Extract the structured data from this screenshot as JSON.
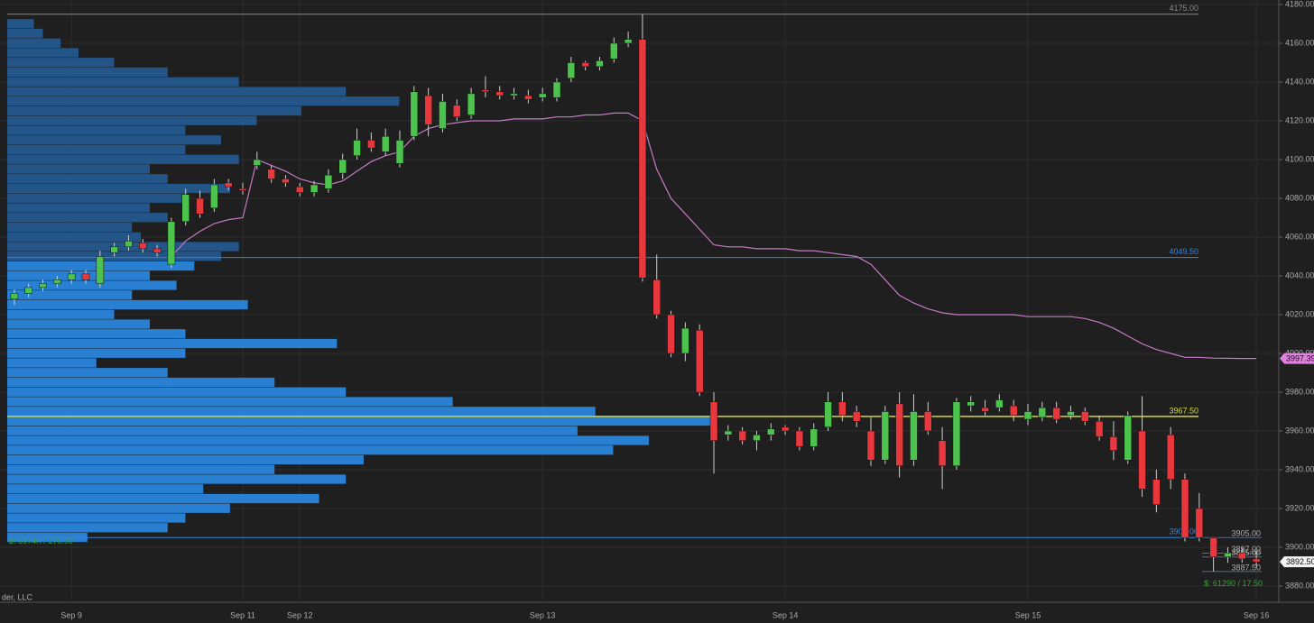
{
  "chart_data": {
    "type": "candlestick",
    "footer": "der, LLC",
    "categories": [
      null,
      null,
      null,
      null,
      "Sep 9",
      null,
      null,
      null,
      null,
      null,
      null,
      null,
      null,
      null,
      null,
      null,
      "Sep 11",
      null,
      null,
      null,
      "Sep 12",
      null,
      null,
      null,
      null,
      null,
      null,
      null,
      null,
      null,
      null,
      null,
      null,
      null,
      null,
      null,
      null,
      "Sep 13",
      null,
      null,
      null,
      null,
      null,
      null,
      null,
      null,
      null,
      null,
      null,
      null,
      null,
      null,
      null,
      null,
      "Sep 14",
      null,
      null,
      null,
      null,
      null,
      null,
      null,
      null,
      null,
      null,
      null,
      null,
      null,
      null,
      null,
      null,
      "Sep 15",
      null,
      null,
      null,
      null,
      null,
      null,
      null,
      null,
      null,
      null,
      null,
      null,
      null,
      null,
      null,
      "Sep 16"
    ],
    "open": [
      4028,
      4031,
      4034,
      4036,
      4038,
      4041,
      4036,
      4052,
      4055,
      4057,
      4054,
      4046,
      4068,
      4080,
      4075,
      4088,
      4085,
      4097,
      4095,
      4090,
      4086,
      4083,
      4085,
      4093,
      4102,
      4110,
      4104,
      4098,
      4112,
      4133,
      4116,
      4128,
      4123,
      4136,
      4135,
      4133,
      4133,
      4132,
      4132,
      4142,
      4150,
      4148,
      4152,
      4160,
      4162,
      4038,
      4020,
      4000,
      4012,
      3975,
      3958,
      3960,
      3955,
      3958,
      3962,
      3960,
      3952,
      3962,
      3975,
      3970,
      3960,
      3945,
      3974,
      3945,
      3970,
      3955,
      3942,
      3973,
      3972,
      3972,
      3973,
      3966,
      3967,
      3972,
      3968,
      3970,
      3965,
      3957,
      3945,
      3960,
      3935,
      3958,
      3935,
      3920,
      3905,
      3895,
      3897,
      3894
    ],
    "high": [
      4033,
      4036,
      4038,
      4040,
      4043,
      4043,
      4053,
      4057,
      4061,
      4059,
      4056,
      4070,
      4085,
      4084,
      4090,
      4090,
      4088,
      4104,
      4097,
      4092,
      4088,
      4089,
      4095,
      4103,
      4116,
      4114,
      4116,
      4115,
      4138,
      4137,
      4134,
      4131,
      4137,
      4143,
      4138,
      4137,
      4136,
      4137,
      4142,
      4153,
      4151,
      4153,
      4163,
      4166,
      4175,
      4051,
      4022,
      4016,
      4015,
      3980,
      3963,
      3962,
      3960,
      3964,
      3963,
      3962,
      3964,
      3980,
      3980,
      3973,
      3967,
      3973,
      3980,
      3979,
      3975,
      3962,
      3977,
      3978,
      3976,
      3979,
      3976,
      3974,
      3975,
      3975,
      3973,
      3972,
      3968,
      3965,
      3970,
      3978,
      3940,
      3962,
      3938,
      3928,
      3905,
      3900,
      3900,
      3898
    ],
    "low": [
      4025,
      4029,
      4032,
      4034,
      4036,
      4036,
      4034,
      4050,
      4053,
      4052,
      4050,
      4044,
      4066,
      4070,
      4073,
      4084,
      4082,
      4095,
      4088,
      4086,
      4081,
      4081,
      4083,
      4090,
      4100,
      4104,
      4102,
      4096,
      4110,
      4112,
      4114,
      4120,
      4121,
      4132,
      4131,
      4131,
      4129,
      4130,
      4130,
      4140,
      4146,
      4146,
      4150,
      4158,
      4037,
      4018,
      3998,
      3996,
      3978,
      3938,
      3955,
      3953,
      3950,
      3955,
      3958,
      3950,
      3950,
      3960,
      3965,
      3962,
      3942,
      3943,
      3936,
      3942,
      3958,
      3930,
      3940,
      3970,
      3968,
      3970,
      3965,
      3963,
      3965,
      3964,
      3966,
      3963,
      3955,
      3945,
      3943,
      3926,
      3918,
      3930,
      3903,
      3903,
      3887.5,
      3892,
      3892,
      3890
    ],
    "close": [
      4031,
      4034,
      4036,
      4038,
      4041,
      4038,
      4050,
      4055,
      4058,
      4054,
      4052,
      4068,
      4082,
      4072,
      4087,
      4086,
      4084,
      4100,
      4090,
      4088,
      4083,
      4087,
      4092,
      4100,
      4110,
      4106,
      4112,
      4110,
      4135,
      4118,
      4130,
      4122,
      4134,
      4135,
      4133,
      4134,
      4131,
      4134,
      4140,
      4150,
      4148,
      4151,
      4160,
      4162,
      4039,
      4020,
      4000,
      4013,
      3980,
      3955,
      3960,
      3955,
      3958,
      3961,
      3960,
      3952,
      3961,
      3975,
      3968,
      3965,
      3945,
      3970,
      3942,
      3970,
      3960,
      3942,
      3975,
      3975,
      3970,
      3976,
      3968,
      3970,
      3972,
      3966,
      3970,
      3965,
      3957,
      3950,
      3968,
      3930,
      3922,
      3935,
      3905,
      3905,
      3895,
      3897,
      3894,
      3892.5
    ],
    "up_color": "#4cc34c",
    "down_color": "#e8383d",
    "vwap": {
      "color": "#c77bc7",
      "values": [
        null,
        null,
        null,
        null,
        null,
        null,
        null,
        null,
        null,
        null,
        null,
        4050,
        4058,
        4063,
        4067,
        4069,
        4070,
        4100,
        4097,
        4094,
        4090,
        4088,
        4087,
        4089,
        4094,
        4099,
        4102,
        4104,
        4112,
        4116,
        4118,
        4119,
        4120,
        4120,
        4120,
        4121,
        4121,
        4121,
        4122,
        4122,
        4123,
        4123,
        4124,
        4124,
        4120,
        4095,
        4080,
        4072,
        4064,
        4056,
        4055,
        4055,
        4054,
        4054,
        4054,
        4053,
        4053,
        4052,
        4051,
        4050,
        4046,
        4038,
        4030,
        4026,
        4023,
        4021,
        4020,
        4020,
        4020,
        4020,
        4020,
        4019,
        4019,
        4019,
        4019,
        4018,
        4016,
        4013,
        4009,
        4005,
        4002,
        4000,
        3998,
        3998,
        3997.6,
        3997.5,
        3997.4,
        3997.39
      ]
    },
    "volume_profile": {
      "prices": [
        4170,
        4165,
        4160,
        4155,
        4150,
        4145,
        4140,
        4135,
        4130,
        4125,
        4120,
        4115,
        4110,
        4105,
        4100,
        4095,
        4090,
        4085,
        4080,
        4075,
        4070,
        4065,
        4060,
        4055,
        4050,
        4045,
        4040,
        4035,
        4030,
        4025,
        4020,
        4015,
        4010,
        4005,
        4000,
        3995,
        3990,
        3985,
        3980,
        3975,
        3970,
        3965,
        3960,
        3955,
        3950,
        3945,
        3940,
        3935,
        3930,
        3925,
        3920,
        3915,
        3910,
        3905
      ],
      "values": [
        30,
        40,
        60,
        80,
        120,
        180,
        260,
        380,
        440,
        330,
        280,
        200,
        240,
        200,
        260,
        160,
        180,
        250,
        200,
        160,
        180,
        140,
        150,
        260,
        240,
        210,
        160,
        190,
        140,
        270,
        120,
        160,
        200,
        370,
        200,
        100,
        180,
        300,
        380,
        500,
        660,
        790,
        640,
        720,
        680,
        400,
        300,
        380,
        220,
        350,
        250,
        200,
        180,
        90
      ],
      "value_area": [
        3905,
        4049.5
      ],
      "inside_color": "#2a86dc",
      "outside_color": "#24598f",
      "labels": [
        {
          "text": "$: 6974K / 270.00",
          "price": 3903
        },
        {
          "text": "$: 61290 / 17.50",
          "price": 3881
        }
      ]
    },
    "levels": [
      {
        "value": 4175,
        "label": "4175.00",
        "color": "#888888"
      },
      {
        "value": 4049.5,
        "label": "4049.50",
        "color": "#3b83d6"
      },
      {
        "value": 3967.5,
        "label": "3967.50",
        "color": "#d8d830"
      },
      {
        "value": 3905,
        "label": "3905.00",
        "color": "#3b83d6"
      }
    ],
    "mini_levels": [
      {
        "value": 3905,
        "label": "3905.00"
      },
      {
        "value": 3897,
        "label": "3897.00"
      },
      {
        "value": 3895,
        "label": "3895.00"
      },
      {
        "value": 3887.5,
        "label": "3887.50"
      }
    ],
    "price_tags": [
      {
        "value": 3997.39,
        "label": "3997.39",
        "color": "#e07fe0"
      },
      {
        "value": 3892.5,
        "label": "3892.50",
        "color": "#f2f2f2"
      }
    ],
    "ylim": [
      3880,
      4180
    ],
    "yticks": [
      {
        "value": 3880,
        "label": "3880.00"
      },
      {
        "value": 3900,
        "label": "3900.00"
      },
      {
        "value": 3920,
        "label": "3920.00"
      },
      {
        "value": 3940,
        "label": "3940.00"
      },
      {
        "value": 3960,
        "label": "3960.00"
      },
      {
        "value": 3980,
        "label": "3980.00"
      },
      {
        "value": 4000,
        "label": "4000.00"
      },
      {
        "value": 4020,
        "label": "4020.00"
      },
      {
        "value": 4040,
        "label": "4040.00"
      },
      {
        "value": 4060,
        "label": "4060.00"
      },
      {
        "value": 4080,
        "label": "4080.00"
      },
      {
        "value": 4100,
        "label": "4100.00"
      },
      {
        "value": 4120,
        "label": "4120.00"
      },
      {
        "value": 4140,
        "label": "4140.00"
      },
      {
        "value": 4160,
        "label": "4160.00"
      },
      {
        "value": 4180,
        "label": "4180.00"
      }
    ],
    "grid": true
  }
}
